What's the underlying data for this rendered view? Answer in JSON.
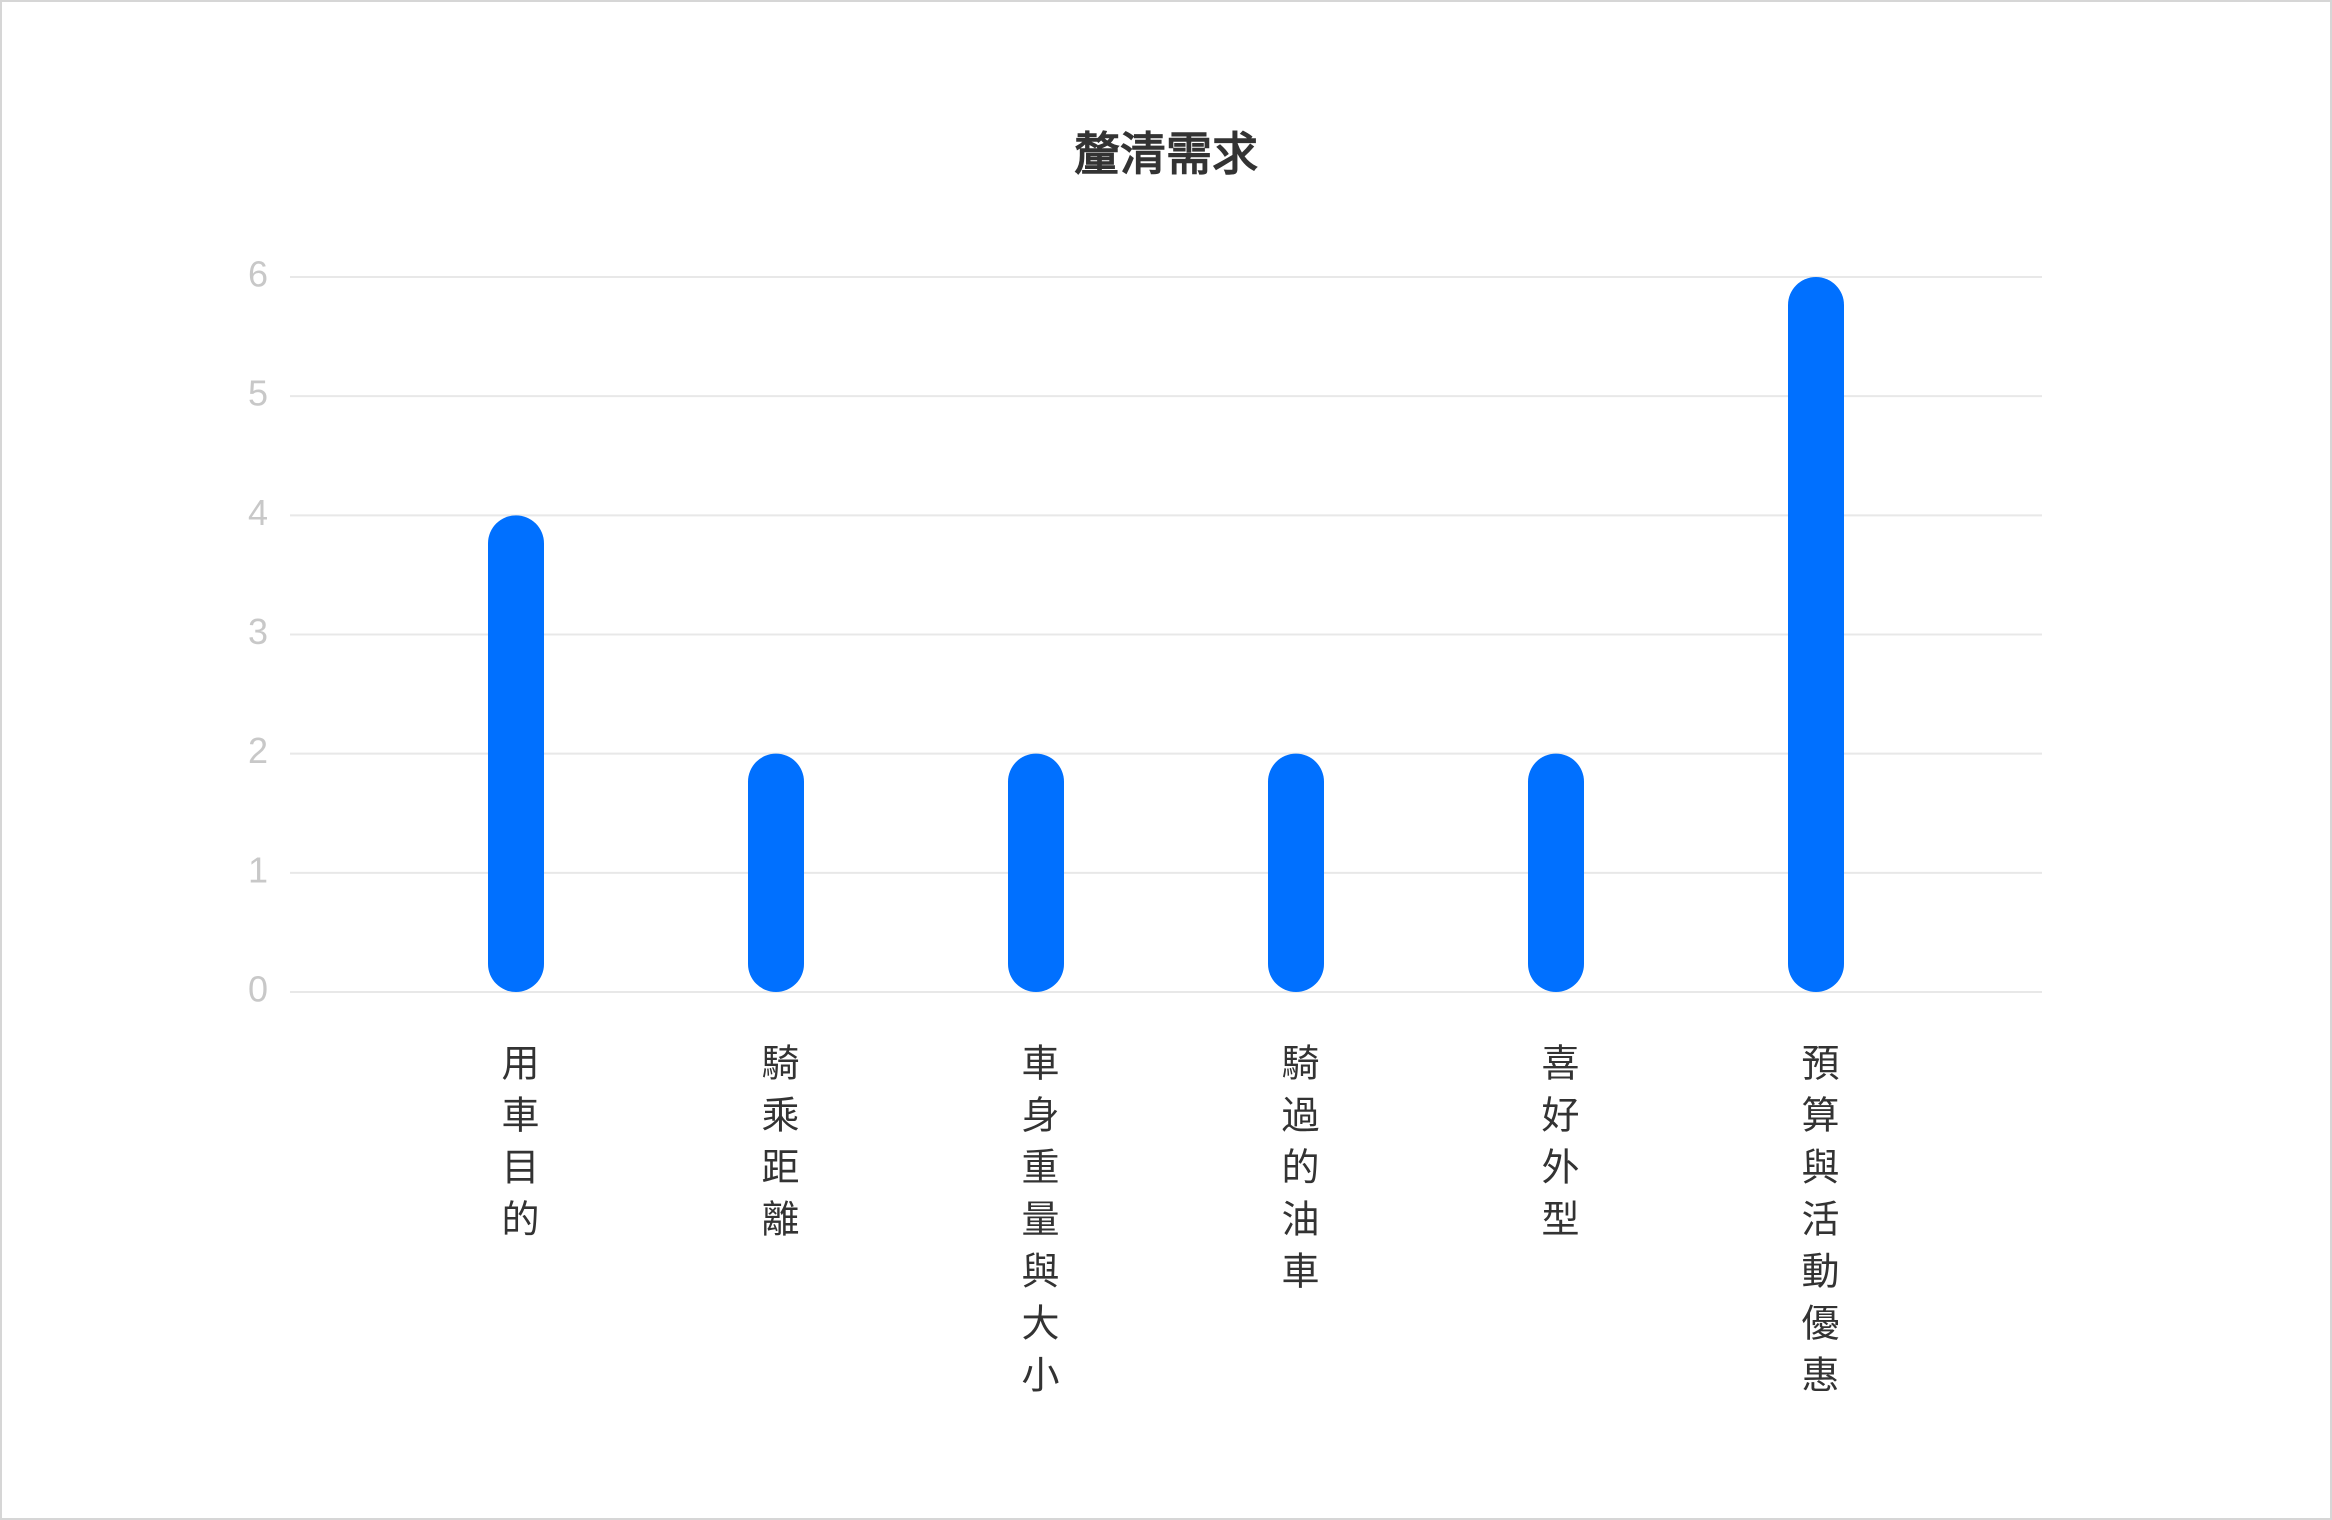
{
  "chart_data": {
    "type": "bar",
    "title": "釐清需求",
    "categories": [
      "用車目的",
      "騎乘距離",
      "車身重量與大小",
      "騎過的油車",
      "喜好外型",
      "預算與活動優惠"
    ],
    "values": [
      4,
      2,
      2,
      2,
      2,
      6
    ],
    "color": "#0070ff",
    "ylim": [
      0,
      6
    ],
    "yticks": [
      0,
      1,
      2,
      3,
      4,
      5,
      6
    ],
    "grid": true
  }
}
